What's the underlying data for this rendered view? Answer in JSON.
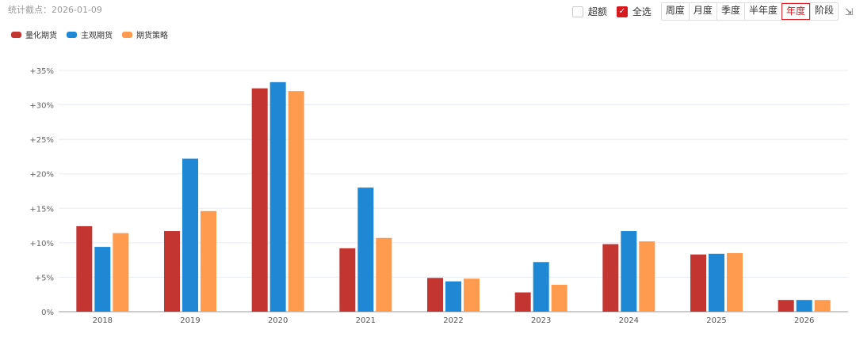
{
  "header": {
    "date_label": "统计截点：2026-01-09"
  },
  "controls": {
    "excess": {
      "label": "超额",
      "checked": false
    },
    "select_all": {
      "label": "全选",
      "checked": true
    },
    "periods": [
      {
        "label": "周度",
        "active": false
      },
      {
        "label": "月度",
        "active": false
      },
      {
        "label": "季度",
        "active": false
      },
      {
        "label": "半年度",
        "active": false
      },
      {
        "label": "年度",
        "active": true
      },
      {
        "label": "阶段",
        "active": false
      }
    ],
    "export_icon": "export-icon"
  },
  "chart_data": {
    "type": "bar",
    "categories": [
      "2018",
      "2019",
      "2020",
      "2021",
      "2022",
      "2023",
      "2024",
      "2025",
      "2026"
    ],
    "series": [
      {
        "name": "量化期货",
        "color": "#c23531",
        "values": [
          12.4,
          11.7,
          32.4,
          9.2,
          4.9,
          2.8,
          9.8,
          8.3,
          1.7
        ]
      },
      {
        "name": "主观期货",
        "color": "#1e88d4",
        "values": [
          9.4,
          22.2,
          33.3,
          18.0,
          4.4,
          7.2,
          11.7,
          8.4,
          1.7
        ]
      },
      {
        "name": "期货策略",
        "color": "#ff9b4e",
        "values": [
          11.4,
          14.6,
          32.0,
          10.7,
          4.8,
          3.9,
          10.2,
          8.5,
          1.7
        ]
      }
    ],
    "yticks": [
      "0%",
      "+5%",
      "+10%",
      "+15%",
      "+20%",
      "+25%",
      "+30%",
      "+35%"
    ],
    "ylim": [
      0,
      35
    ],
    "grid": true,
    "legend_position": "top-left"
  }
}
